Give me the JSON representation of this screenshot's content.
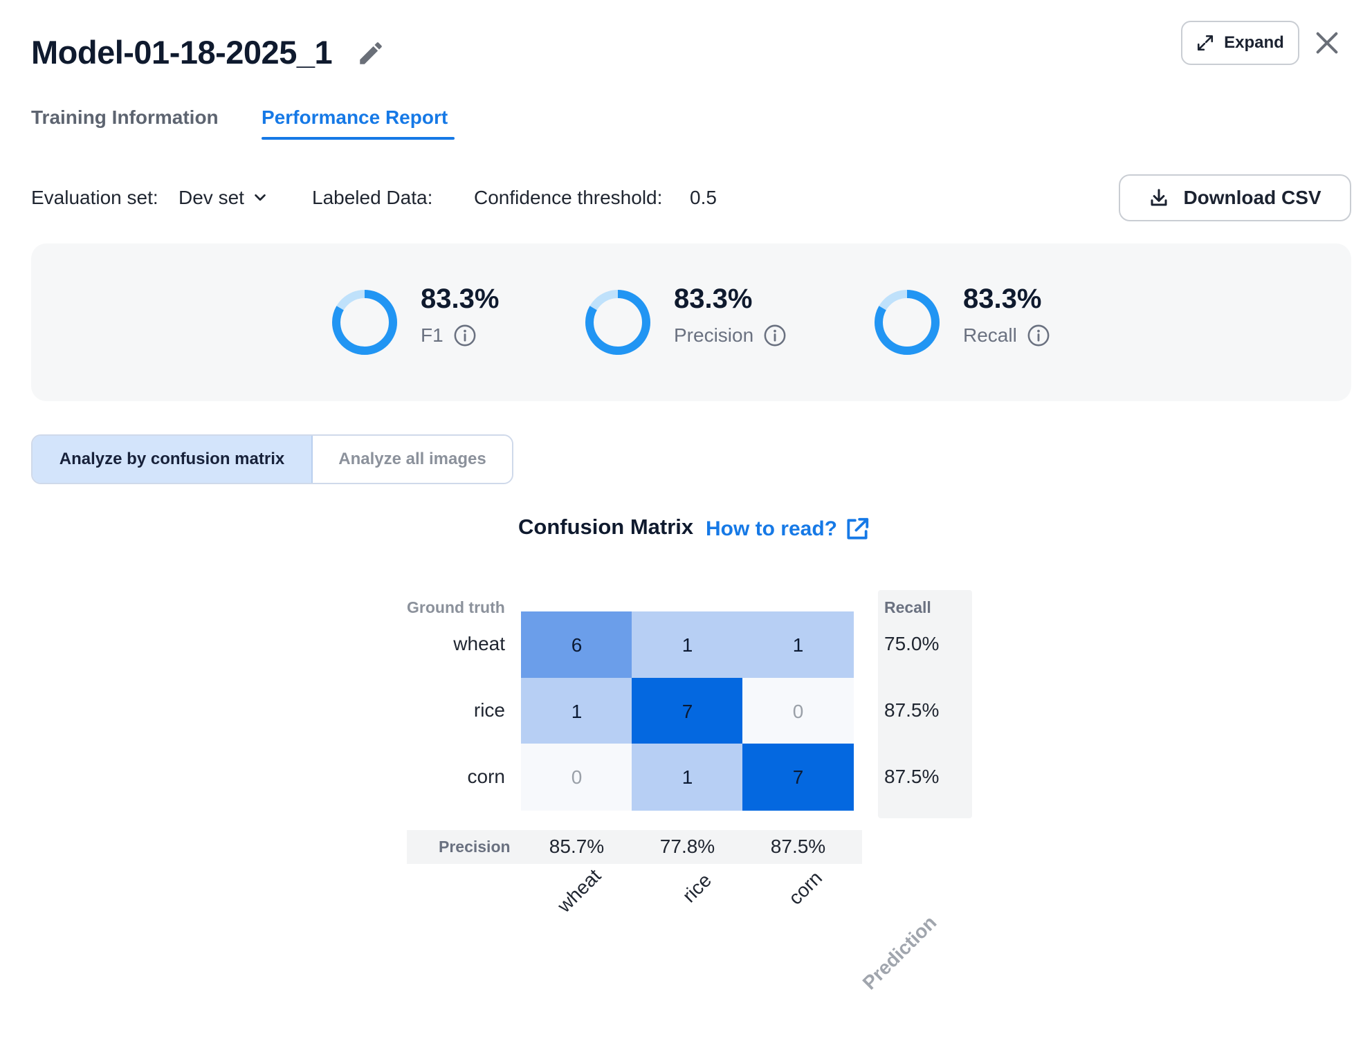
{
  "header": {
    "title": "Model-01-18-2025_1",
    "expand_label": "Expand"
  },
  "tabs": {
    "training": "Training Information",
    "performance": "Performance Report"
  },
  "filters": {
    "evaluation_label": "Evaluation set:",
    "evaluation_value": "Dev set",
    "labeled_data_label": "Labeled Data:",
    "confidence_label": "Confidence threshold:",
    "confidence_value": "0.5",
    "download_label": "Download CSV"
  },
  "metrics": [
    {
      "value": "83.3%",
      "label": "F1",
      "fraction": 0.833
    },
    {
      "value": "83.3%",
      "label": "Precision",
      "fraction": 0.833
    },
    {
      "value": "83.3%",
      "label": "Recall",
      "fraction": 0.833
    }
  ],
  "analyze_toggle": {
    "active": "Analyze by confusion matrix",
    "inactive": "Analyze all images"
  },
  "confusion_matrix": {
    "title": "Confusion Matrix",
    "how_to_read": "How to read?",
    "ground_truth_label": "Ground truth",
    "prediction_label": "Prediction",
    "recall_header": "Recall",
    "precision_header": "Precision",
    "classes": [
      "wheat",
      "rice",
      "corn"
    ],
    "rows": [
      {
        "label": "wheat",
        "cells": [
          "6",
          "1",
          "1"
        ],
        "recall": "75.0%"
      },
      {
        "label": "rice",
        "cells": [
          "1",
          "7",
          "0"
        ],
        "recall": "87.5%"
      },
      {
        "label": "corn",
        "cells": [
          "0",
          "1",
          "7"
        ],
        "recall": "87.5%"
      }
    ],
    "precision": [
      "85.7%",
      "77.8%",
      "87.5%"
    ]
  },
  "colors": {
    "accent": "#1679e6",
    "donut_main": "#2195f3",
    "donut_rest": "#bfe1fb",
    "cell_high": "#0468e0",
    "cell_mid": "#6b9eea",
    "cell_low": "#b7cff4",
    "cell_zero": "#f7f9fc"
  }
}
